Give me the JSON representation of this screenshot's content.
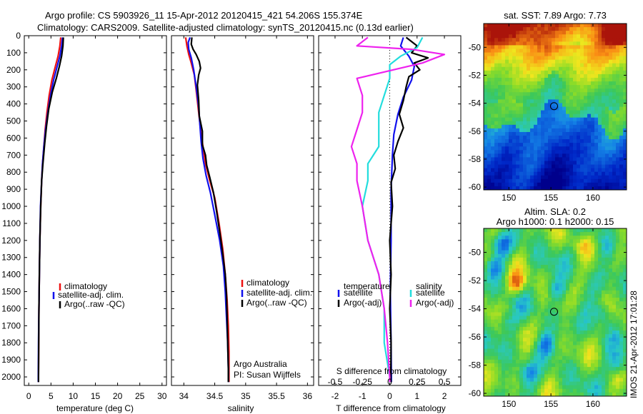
{
  "header": {
    "line1": "Argo profile: CS 5903926_11 15-Apr-2012 20120415_421 54.206S 155.374E",
    "line2": "Climatology: CARS2009. Satellite-adjusted climatology: synTS_20120415.nc (0.13d earlier)"
  },
  "colors": {
    "climatology": "#ee1111",
    "satellite": "#1111ee",
    "argo": "#000000",
    "sal_satellite": "#22dddd",
    "sal_argo": "#ee22ee"
  },
  "depth_axis": {
    "ylim": [
      0,
      2050
    ],
    "ticks": [
      "0",
      "100",
      "200",
      "300",
      "400",
      "500",
      "600",
      "700",
      "800",
      "900",
      "1000",
      "1100",
      "1200",
      "1300",
      "1400",
      "1500",
      "1600",
      "1700",
      "1800",
      "1900",
      "2000"
    ]
  },
  "chart_data": [
    {
      "id": "temperature",
      "type": "line",
      "xlabel": "temperature (deg C)",
      "ylabel": "",
      "xlim": [
        -1,
        31
      ],
      "ylim": [
        0,
        2050
      ],
      "xticks": [
        "0",
        "5",
        "10",
        "15",
        "20",
        "25",
        "30"
      ],
      "legend": {
        "placement": "bottom-center",
        "entries": [
          "climatology",
          "satellite-adj. clim.",
          "Argo(..raw -QC)"
        ]
      },
      "series": [
        {
          "name": "climatology",
          "color_key": "climatology",
          "points": [
            [
              7.2,
              10
            ],
            [
              7.0,
              60
            ],
            [
              6.6,
              120
            ],
            [
              6.0,
              180
            ],
            [
              5.2,
              260
            ],
            [
              4.6,
              350
            ],
            [
              4.1,
              450
            ],
            [
              3.7,
              550
            ],
            [
              3.4,
              650
            ],
            [
              3.1,
              750
            ],
            [
              2.9,
              850
            ],
            [
              2.7,
              1000
            ],
            [
              2.5,
              1200
            ],
            [
              2.4,
              1400
            ],
            [
              2.3,
              1600
            ],
            [
              2.25,
              1800
            ],
            [
              2.2,
              2000
            ],
            [
              2.2,
              2030
            ]
          ]
        },
        {
          "name": "satellite-adj. clim.",
          "color_key": "satellite",
          "points": [
            [
              7.6,
              10
            ],
            [
              7.4,
              60
            ],
            [
              7.0,
              120
            ],
            [
              6.4,
              180
            ],
            [
              5.6,
              260
            ],
            [
              4.9,
              350
            ],
            [
              4.3,
              450
            ],
            [
              3.8,
              550
            ],
            [
              3.4,
              650
            ],
            [
              3.1,
              750
            ],
            [
              2.9,
              850
            ],
            [
              2.65,
              1000
            ],
            [
              2.5,
              1200
            ],
            [
              2.4,
              1400
            ],
            [
              2.3,
              1600
            ],
            [
              2.2,
              1800
            ],
            [
              2.15,
              2000
            ],
            [
              2.15,
              2030
            ]
          ]
        },
        {
          "name": "Argo(..raw -QC)",
          "color_key": "argo",
          "points": [
            [
              7.8,
              10
            ],
            [
              7.7,
              60
            ],
            [
              7.4,
              120
            ],
            [
              6.9,
              180
            ],
            [
              6.2,
              250
            ],
            [
              5.3,
              330
            ],
            [
              4.5,
              430
            ],
            [
              4.0,
              530
            ],
            [
              3.6,
              630
            ],
            [
              3.2,
              750
            ],
            [
              2.9,
              850
            ],
            [
              2.7,
              1000
            ],
            [
              2.5,
              1200
            ],
            [
              2.4,
              1400
            ],
            [
              2.3,
              1600
            ],
            [
              2.25,
              1800
            ],
            [
              2.2,
              2000
            ],
            [
              2.2,
              2030
            ]
          ]
        }
      ]
    },
    {
      "id": "salinity",
      "type": "line",
      "xlabel": "salinity",
      "ylabel": "",
      "xlim": [
        33.8,
        36.1
      ],
      "ylim": [
        0,
        2050
      ],
      "xticks": [
        "34",
        "34.5",
        "35",
        "35.5",
        "36"
      ],
      "legend": {
        "placement": "bottom-right",
        "entries": [
          "climatology",
          "satellite-adj. clim.",
          "Argo(..raw -QC)"
        ]
      },
      "annotations": [
        "Argo Australia",
        "PI: Susan Wijffels"
      ],
      "series": [
        {
          "name": "climatology",
          "color_key": "climatology",
          "points": [
            [
              34.03,
              10
            ],
            [
              34.05,
              60
            ],
            [
              34.08,
              110
            ],
            [
              34.12,
              160
            ],
            [
              34.17,
              230
            ],
            [
              34.2,
              320
            ],
            [
              34.24,
              450
            ],
            [
              34.27,
              550
            ],
            [
              34.31,
              650
            ],
            [
              34.35,
              750
            ],
            [
              34.42,
              850
            ],
            [
              34.5,
              950
            ],
            [
              34.57,
              1100
            ],
            [
              34.63,
              1250
            ],
            [
              34.67,
              1400
            ],
            [
              34.7,
              1550
            ],
            [
              34.72,
              1700
            ],
            [
              34.73,
              1850
            ],
            [
              34.73,
              2000
            ],
            [
              34.73,
              2030
            ]
          ]
        },
        {
          "name": "satellite-adj. clim.",
          "color_key": "satellite",
          "points": [
            [
              34.1,
              10
            ],
            [
              34.07,
              40
            ],
            [
              34.08,
              80
            ],
            [
              34.12,
              130
            ],
            [
              34.16,
              200
            ],
            [
              34.2,
              300
            ],
            [
              34.24,
              420
            ],
            [
              34.26,
              520
            ],
            [
              34.28,
              620
            ],
            [
              34.31,
              720
            ],
            [
              34.36,
              820
            ],
            [
              34.43,
              920
            ],
            [
              34.5,
              1050
            ],
            [
              34.58,
              1200
            ],
            [
              34.64,
              1350
            ],
            [
              34.67,
              1500
            ],
            [
              34.69,
              1650
            ],
            [
              34.71,
              1800
            ],
            [
              34.72,
              1950
            ],
            [
              34.72,
              2030
            ]
          ]
        },
        {
          "name": "Argo(..raw -QC)",
          "color_key": "argo",
          "points": [
            [
              34.13,
              10
            ],
            [
              34.12,
              50
            ],
            [
              34.15,
              80
            ],
            [
              34.2,
              110
            ],
            [
              34.25,
              150
            ],
            [
              34.27,
              190
            ],
            [
              34.24,
              230
            ],
            [
              34.22,
              290
            ],
            [
              34.24,
              380
            ],
            [
              34.25,
              470
            ],
            [
              34.3,
              560
            ],
            [
              34.3,
              640
            ],
            [
              34.35,
              700
            ],
            [
              34.37,
              760
            ],
            [
              34.42,
              830
            ],
            [
              34.48,
              920
            ],
            [
              34.53,
              1030
            ],
            [
              34.58,
              1150
            ],
            [
              34.63,
              1280
            ],
            [
              34.67,
              1400
            ],
            [
              34.69,
              1520
            ],
            [
              34.7,
              1650
            ],
            [
              34.71,
              1800
            ],
            [
              34.72,
              1950
            ],
            [
              34.72,
              2030
            ]
          ]
        }
      ]
    },
    {
      "id": "differences",
      "type": "line",
      "xlabel": "T difference from climatology",
      "secondary_xlabel": "S difference from climatology",
      "ylabel": "",
      "xlim": [
        -2.6,
        2.6
      ],
      "ylim": [
        0,
        2050
      ],
      "xticks": [
        "-2",
        "-1",
        "0",
        "1",
        "2"
      ],
      "secondary_xticks": [
        "-0.5",
        "-0.25",
        "0",
        "0.25",
        "0.5"
      ],
      "legend": {
        "placement": "bottom",
        "headers": [
          "temperature",
          "salinity"
        ],
        "temperature_entries": [
          "satellite",
          "Argo(-adj)"
        ],
        "salinity_entries": [
          "satellite",
          "Argo(-adj)"
        ]
      },
      "series": [
        {
          "name": "temperature satellite",
          "color_key": "satellite",
          "points": [
            [
              0.5,
              10
            ],
            [
              0.4,
              60
            ],
            [
              0.7,
              120
            ],
            [
              0.9,
              180
            ],
            [
              0.8,
              260
            ],
            [
              0.5,
              360
            ],
            [
              0.3,
              460
            ],
            [
              0.15,
              580
            ],
            [
              0.1,
              700
            ],
            [
              0.05,
              900
            ],
            [
              0.05,
              1200
            ],
            [
              0.02,
              1500
            ],
            [
              0.05,
              1800
            ],
            [
              0.06,
              2000
            ],
            [
              0.06,
              2030
            ]
          ]
        },
        {
          "name": "temperature Argo(-adj)",
          "color_key": "argo",
          "points": [
            [
              0.6,
              10
            ],
            [
              1.0,
              60
            ],
            [
              0.8,
              100
            ],
            [
              1.4,
              130
            ],
            [
              0.9,
              160
            ],
            [
              1.1,
              200
            ],
            [
              0.7,
              240
            ],
            [
              0.6,
              300
            ],
            [
              0.5,
              380
            ],
            [
              0.35,
              460
            ],
            [
              0.5,
              540
            ],
            [
              0.3,
              620
            ],
            [
              0.15,
              700
            ],
            [
              0.2,
              780
            ],
            [
              0.05,
              860
            ],
            [
              0.1,
              1000
            ],
            [
              0.0,
              1200
            ],
            [
              0.05,
              1400
            ],
            [
              0.0,
              1600
            ],
            [
              0.05,
              1800
            ],
            [
              0.04,
              2000
            ],
            [
              0.04,
              2030
            ]
          ]
        },
        {
          "name": "salinity satellite",
          "color_key": "sal_satellite",
          "points": [
            [
              0.3,
              10
            ],
            [
              0.25,
              70
            ],
            [
              0.1,
              120
            ],
            [
              0.0,
              170
            ],
            [
              0.0,
              250
            ],
            [
              -0.05,
              350
            ],
            [
              -0.1,
              450
            ],
            [
              -0.1,
              550
            ],
            [
              -0.1,
              650
            ],
            [
              -0.2,
              750
            ],
            [
              -0.2,
              850
            ],
            [
              -0.25,
              1000
            ],
            [
              -0.2,
              1200
            ],
            [
              -0.1,
              1400
            ],
            [
              -0.05,
              1600
            ],
            [
              -0.05,
              1800
            ],
            [
              0.0,
              2000
            ],
            [
              0.0,
              2030
            ]
          ]
        },
        {
          "name": "salinity Argo(-adj)",
          "color_key": "sal_argo",
          "points": [
            [
              -0.2,
              10
            ],
            [
              -0.3,
              60
            ],
            [
              0.2,
              80
            ],
            [
              0.5,
              110
            ],
            [
              0.3,
              160
            ],
            [
              -0.3,
              250
            ],
            [
              -0.25,
              350
            ],
            [
              -0.25,
              450
            ],
            [
              -0.3,
              550
            ],
            [
              -0.35,
              650
            ],
            [
              -0.3,
              750
            ],
            [
              -0.3,
              850
            ],
            [
              -0.25,
              1000
            ],
            [
              -0.2,
              1200
            ],
            [
              -0.1,
              1400
            ],
            [
              -0.05,
              1600
            ],
            [
              -0.02,
              1800
            ],
            [
              0.0,
              2000
            ],
            [
              0.0,
              2030
            ]
          ]
        }
      ]
    },
    {
      "id": "sst_map",
      "type": "heatmap",
      "title": "sat. SST: 7.89 Argo: 7.73",
      "xlim": [
        147,
        164
      ],
      "ylim": [
        -60.2,
        -48.3
      ],
      "xticks": [
        "150",
        "155",
        "160"
      ],
      "yticks": [
        "-50",
        "-52",
        "-54",
        "-56",
        "-58",
        "-60"
      ],
      "marker": [
        155.37,
        -54.21
      ]
    },
    {
      "id": "sla_map",
      "type": "heatmap",
      "title": "Altim. SLA: 0.2",
      "subtitle": "Argo h1000: 0.1 h2000: 0.15",
      "xlim": [
        147,
        164
      ],
      "ylim": [
        -60.2,
        -48.3
      ],
      "xticks": [
        "150",
        "155",
        "160"
      ],
      "yticks": [
        "-50",
        "-52",
        "-54",
        "-56",
        "-58",
        "-60"
      ],
      "marker": [
        155.37,
        -54.21
      ]
    }
  ],
  "side_label": "IMOS 21-Apr-2012 17:01:28"
}
